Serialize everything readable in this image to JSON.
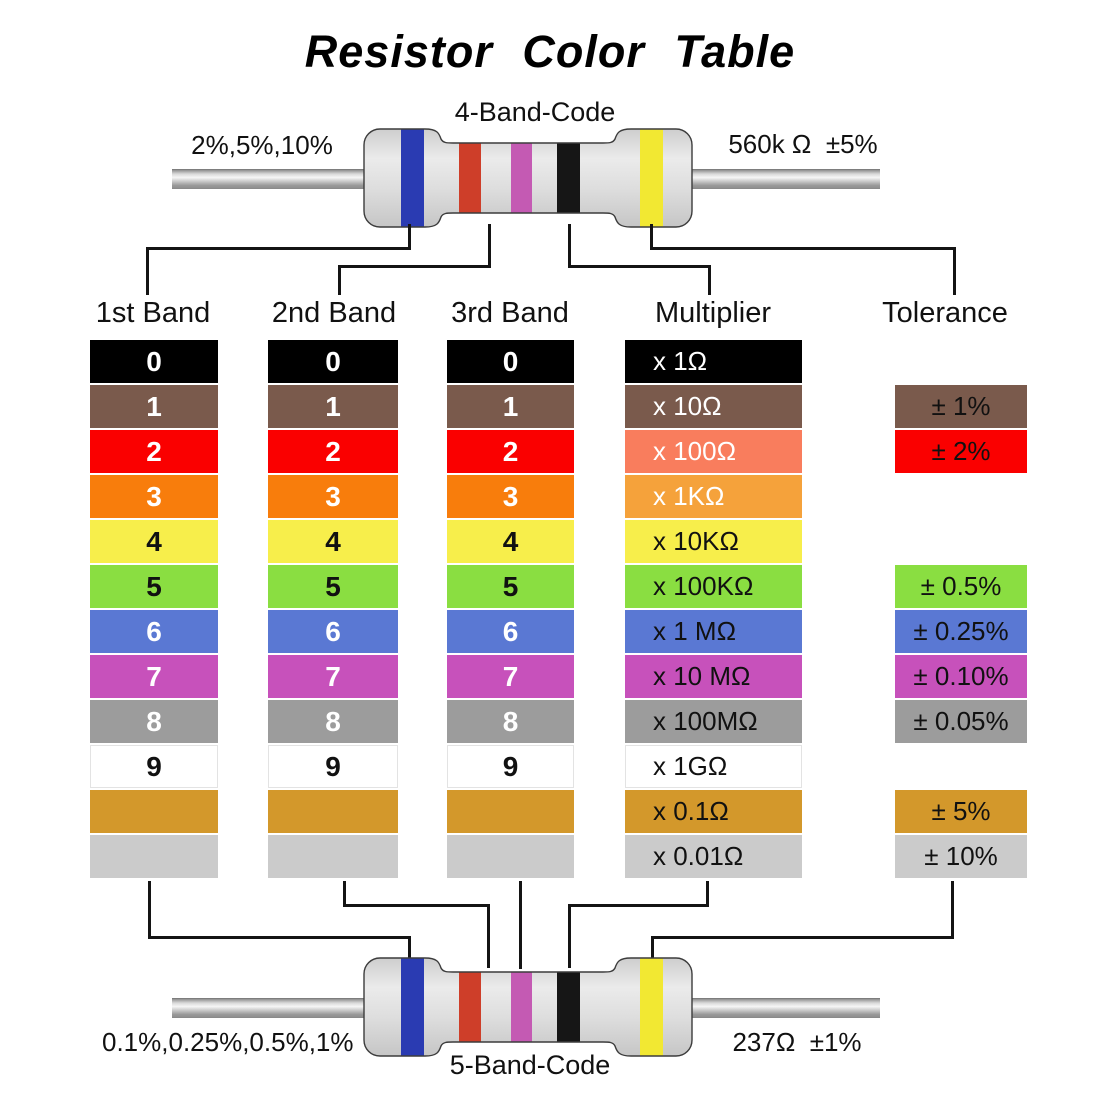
{
  "title": "Resistor Color Table",
  "top_resistor": {
    "code_label": "4-Band-Code",
    "left_label": "2%,5%,10%",
    "right_label": "560k Ω  ±5%"
  },
  "bottom_resistor": {
    "code_label": "5-Band-Code",
    "left_label": "0.1%,0.25%,0.5%,1%",
    "right_label": "237Ω  ±1%"
  },
  "table": {
    "headers": [
      "1st Band",
      "2nd Band",
      "3rd Band",
      "Multiplier",
      "Tolerance"
    ],
    "digit_rows": [
      {
        "digit": "0",
        "color": "black",
        "text_color": "#ffffff"
      },
      {
        "digit": "1",
        "color": "brown",
        "text_color": "#ffffff"
      },
      {
        "digit": "2",
        "color": "red",
        "text_color": "#ffffff"
      },
      {
        "digit": "3",
        "color": "orange",
        "text_color": "#ffffff"
      },
      {
        "digit": "4",
        "color": "yellow",
        "text_color": "#111111"
      },
      {
        "digit": "5",
        "color": "green",
        "text_color": "#111111"
      },
      {
        "digit": "6",
        "color": "blue",
        "text_color": "#ffffff"
      },
      {
        "digit": "7",
        "color": "violet",
        "text_color": "#ffffff"
      },
      {
        "digit": "8",
        "color": "gray",
        "text_color": "#ffffff"
      },
      {
        "digit": "9",
        "color": "white",
        "text_color": "#111111"
      },
      {
        "digit": "",
        "color": "gold",
        "text_color": "#111111"
      },
      {
        "digit": "",
        "color": "silver",
        "text_color": "#111111"
      }
    ],
    "multiplier_rows": [
      {
        "label": "x 1Ω",
        "color": "black",
        "text_color": "#ffffff"
      },
      {
        "label": "x 10Ω",
        "color": "brown",
        "text_color": "#ffffff"
      },
      {
        "label": "x 100Ω",
        "color": "salmon",
        "text_color": "#ffffff"
      },
      {
        "label": "x 1KΩ",
        "color": "orange_light",
        "text_color": "#ffffff"
      },
      {
        "label": "x 10KΩ",
        "color": "yellow",
        "text_color": "#111111"
      },
      {
        "label": "x 100KΩ",
        "color": "green",
        "text_color": "#111111"
      },
      {
        "label": "x 1 MΩ",
        "color": "blue",
        "text_color": "#111111"
      },
      {
        "label": "x 10 MΩ",
        "color": "violet",
        "text_color": "#111111"
      },
      {
        "label": "x 100MΩ",
        "color": "gray",
        "text_color": "#111111"
      },
      {
        "label": "x 1GΩ",
        "color": "white",
        "text_color": "#111111"
      },
      {
        "label": "x 0.1Ω",
        "color": "gold",
        "text_color": "#111111"
      },
      {
        "label": "x 0.01Ω",
        "color": "silver",
        "text_color": "#111111"
      }
    ],
    "tolerance_rows": [
      {
        "row_index": 1,
        "color": "brown",
        "label": "± 1%"
      },
      {
        "row_index": 2,
        "color": "red",
        "label": "± 2%"
      },
      {
        "row_index": 5,
        "color": "green",
        "label": "± 0.5%"
      },
      {
        "row_index": 6,
        "color": "blue",
        "label": "± 0.25%"
      },
      {
        "row_index": 7,
        "color": "violet",
        "label": "± 0.10%"
      },
      {
        "row_index": 8,
        "color": "gray",
        "label": "± 0.05%"
      },
      {
        "row_index": 10,
        "color": "gold",
        "label": "± 5%"
      },
      {
        "row_index": 11,
        "color": "silver",
        "label": "± 10%"
      }
    ]
  },
  "colors": {
    "black": "#000000",
    "brown": "#7a5a4c",
    "red": "#fa0000",
    "salmon": "#f97d5d",
    "orange": "#f87d0c",
    "orange_light": "#f5a23b",
    "yellow": "#f7ee4b",
    "green": "#8ade41",
    "blue": "#5a78d3",
    "violet": "#c751bb",
    "gray": "#9c9c9c",
    "white": "#ffffff",
    "gold": "#d3982b",
    "silver": "#cbcbcb"
  },
  "resistor": {
    "body_color": "#dcdcdc",
    "bands": [
      {
        "name": "blue",
        "hex": "#2a3bb2"
      },
      {
        "name": "red",
        "hex": "#ce3e29"
      },
      {
        "name": "violet",
        "hex": "#c45ab3"
      },
      {
        "name": "black",
        "hex": "#161616"
      },
      {
        "name": "yellow",
        "hex": "#f2e832"
      }
    ]
  }
}
